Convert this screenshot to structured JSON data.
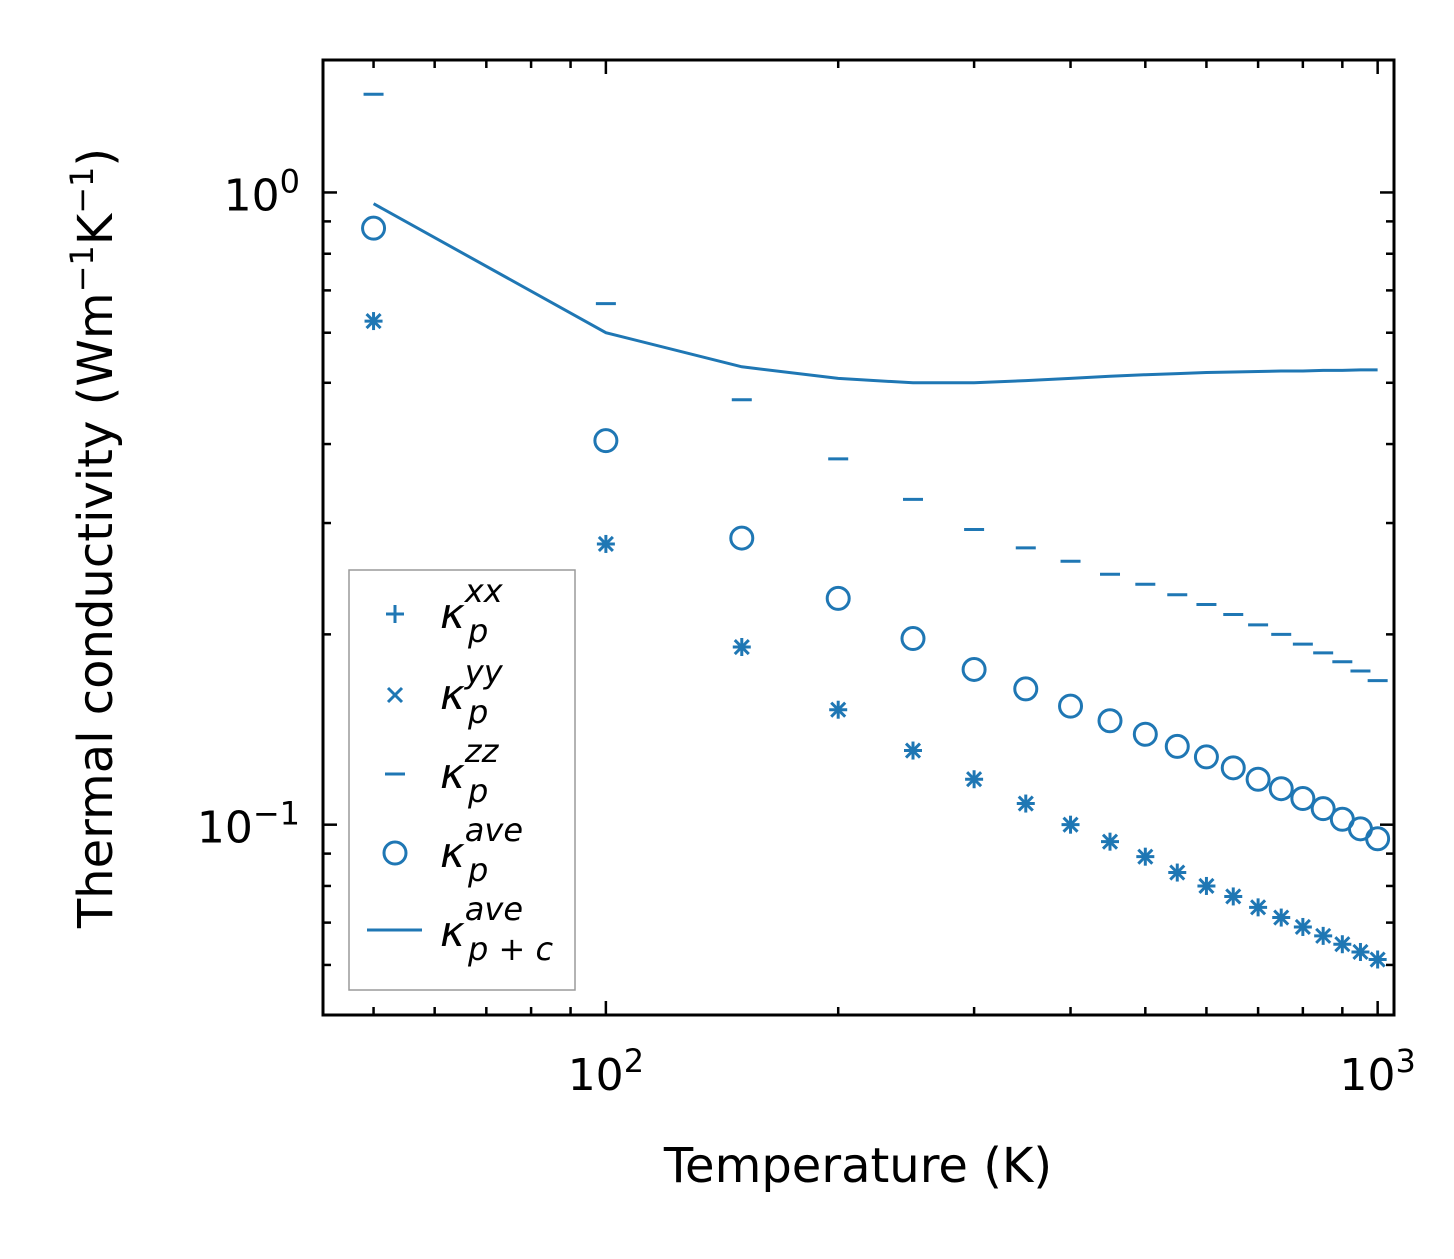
{
  "chart_data": {
    "type": "scatter",
    "title": "",
    "xlabel": "Temperature (K)",
    "ylabel": "Thermal conductivity (Wm$^{-1}$K$^{-1}$)",
    "ylabel_parts": {
      "base": "Thermal conductivity (Wm",
      "sup1": "−1",
      "mid": "K",
      "sup2": "−1",
      "end": ")"
    },
    "xscale": "log",
    "yscale": "log",
    "xlim": [
      43,
      1050
    ],
    "ylim": [
      0.05,
      1.62
    ],
    "x_ticks": [
      {
        "value": 100,
        "base": "10",
        "exp": "2"
      },
      {
        "value": 1000,
        "base": "10",
        "exp": "3"
      }
    ],
    "y_ticks": [
      {
        "value": 0.1,
        "base": "10",
        "exp": "−1"
      },
      {
        "value": 1,
        "base": "10",
        "exp": "0"
      }
    ],
    "legend_position": "lower-left",
    "color": "#1f77b4",
    "x": [
      50,
      100,
      150,
      200,
      250,
      300,
      350,
      400,
      450,
      500,
      550,
      600,
      650,
      700,
      750,
      800,
      850,
      900,
      950,
      1000
    ],
    "series": [
      {
        "name": "xx",
        "label_base": "κ",
        "label_sub": "p",
        "label_sup": "xx",
        "marker": "plus",
        "values": [
          0.626,
          0.278,
          0.191,
          0.152,
          0.131,
          0.118,
          0.108,
          0.1,
          0.094,
          0.089,
          0.084,
          0.08,
          0.077,
          0.074,
          0.0713,
          0.0689,
          0.0667,
          0.0647,
          0.0629,
          0.0612
        ]
      },
      {
        "name": "yy",
        "label_base": "κ",
        "label_sub": "p",
        "label_sup": "yy",
        "marker": "x",
        "values": [
          0.626,
          0.278,
          0.191,
          0.152,
          0.131,
          0.118,
          0.108,
          0.1,
          0.094,
          0.089,
          0.084,
          0.08,
          0.077,
          0.074,
          0.0713,
          0.0689,
          0.0667,
          0.0647,
          0.0629,
          0.0612
        ]
      },
      {
        "name": "zz",
        "label_base": "κ",
        "label_sub": "p",
        "label_sup": "zz",
        "marker": "hline",
        "values": [
          1.43,
          0.667,
          0.47,
          0.379,
          0.327,
          0.293,
          0.274,
          0.261,
          0.249,
          0.24,
          0.231,
          0.223,
          0.215,
          0.207,
          0.2,
          0.193,
          0.187,
          0.181,
          0.175,
          0.169
        ]
      },
      {
        "name": "ave",
        "label_base": "κ",
        "label_sub": "p",
        "label_sup": "ave",
        "marker": "circle",
        "values": [
          0.878,
          0.405,
          0.284,
          0.228,
          0.197,
          0.176,
          0.164,
          0.154,
          0.146,
          0.139,
          0.133,
          0.128,
          0.123,
          0.118,
          0.114,
          0.11,
          0.106,
          0.102,
          0.0985,
          0.095
        ]
      },
      {
        "name": "ave_pc",
        "label_base": "κ",
        "label_sub": "p + c",
        "label_sup": "ave",
        "marker": "line",
        "values": [
          0.96,
          0.6,
          0.53,
          0.508,
          0.5,
          0.5,
          0.504,
          0.508,
          0.512,
          0.515,
          0.517,
          0.519,
          0.52,
          0.521,
          0.522,
          0.522,
          0.523,
          0.523,
          0.524,
          0.524
        ]
      }
    ]
  }
}
